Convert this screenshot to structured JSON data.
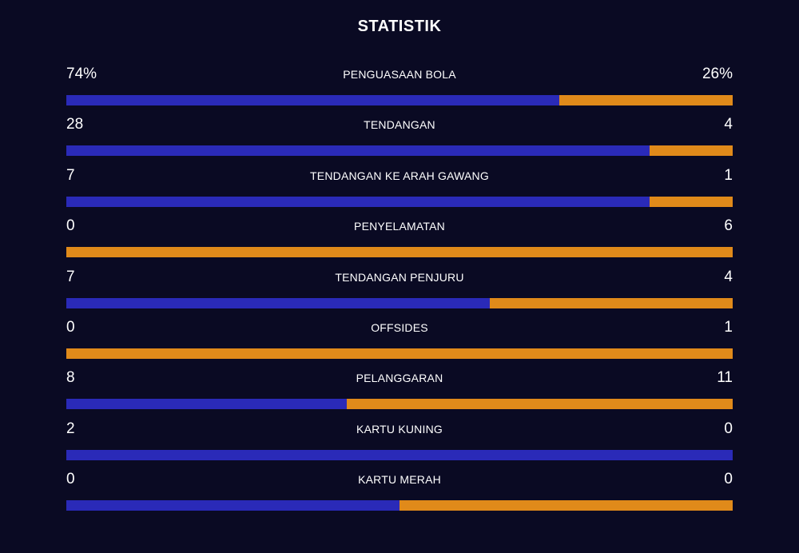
{
  "title": "STATISTIK",
  "colors": {
    "background": "#0a0a23",
    "home": "#2a2ab8",
    "away": "#e08a1a",
    "text": "#ffffff"
  },
  "stats": [
    {
      "label": "PENGUASAAN BOLA",
      "home": "74%",
      "away": "26%",
      "home_share": 0.74
    },
    {
      "label": "TENDANGAN",
      "home": "28",
      "away": "4",
      "home_share": 0.875
    },
    {
      "label": "TENDANGAN KE ARAH GAWANG",
      "home": "7",
      "away": "1",
      "home_share": 0.875
    },
    {
      "label": "PENYELAMATAN",
      "home": "0",
      "away": "6",
      "home_share": 0.0
    },
    {
      "label": "TENDANGAN PENJURU",
      "home": "7",
      "away": "4",
      "home_share": 0.636
    },
    {
      "label": "OFFSIDES",
      "home": "0",
      "away": "1",
      "home_share": 0.0
    },
    {
      "label": "PELANGGARAN",
      "home": "8",
      "away": "11",
      "home_share": 0.421
    },
    {
      "label": "KARTU KUNING",
      "home": "2",
      "away": "0",
      "home_share": 1.0
    },
    {
      "label": "KARTU MERAH",
      "home": "0",
      "away": "0",
      "home_share": 0.5
    }
  ]
}
